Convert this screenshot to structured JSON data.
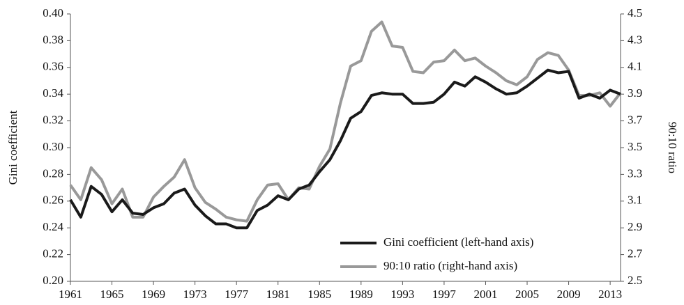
{
  "chart_data": {
    "type": "line",
    "y_label": "Gini coefficient",
    "y2_label": "90:10 ratio",
    "x": [
      1961,
      1962,
      1963,
      1964,
      1965,
      1966,
      1967,
      1968,
      1969,
      1970,
      1971,
      1972,
      1973,
      1974,
      1975,
      1976,
      1977,
      1978,
      1979,
      1980,
      1981,
      1982,
      1983,
      1984,
      1985,
      1986,
      1987,
      1988,
      1989,
      1990,
      1991,
      1992,
      1993,
      1994,
      1995,
      1996,
      1997,
      1998,
      1999,
      2000,
      2001,
      2002,
      2003,
      2004,
      2005,
      2006,
      2007,
      2008,
      2009,
      2010,
      2011,
      2012,
      2013,
      2014
    ],
    "xlim": [
      1961,
      2014
    ],
    "xticks": [
      1961,
      1965,
      1969,
      1973,
      1977,
      1981,
      1985,
      1989,
      1993,
      1997,
      2001,
      2005,
      2009,
      2013
    ],
    "ylim": [
      0.2,
      0.4
    ],
    "yticks": [
      {
        "value": 0.2,
        "label": "0.20"
      },
      0.22,
      0.24,
      0.26,
      0.28,
      {
        "value": 0.3,
        "label": "0.30"
      },
      0.32,
      0.34,
      0.36,
      0.38,
      {
        "value": 0.4,
        "label": "0.40"
      }
    ],
    "y2lim": [
      2.5,
      4.5
    ],
    "y2ticks": [
      2.5,
      2.7,
      2.9,
      3.1,
      3.3,
      3.5,
      3.7,
      3.9,
      4.1,
      4.3,
      4.5
    ],
    "legend": "lower right",
    "series": [
      {
        "name": "Gini coefficient (left-hand axis)",
        "color": "#1a1a1a",
        "axis": "y",
        "values": [
          0.261,
          0.248,
          0.271,
          0.265,
          0.252,
          0.261,
          0.251,
          0.25,
          0.255,
          0.258,
          0.266,
          0.269,
          0.257,
          0.249,
          0.243,
          0.243,
          0.24,
          0.24,
          0.253,
          0.257,
          0.264,
          0.261,
          0.269,
          0.272,
          0.282,
          0.291,
          0.305,
          0.322,
          0.327,
          0.339,
          0.341,
          0.34,
          0.34,
          0.333,
          0.333,
          0.334,
          0.34,
          0.349,
          0.346,
          0.353,
          0.349,
          0.344,
          0.34,
          0.341,
          0.346,
          0.352,
          0.358,
          0.356,
          0.357,
          0.337,
          0.34,
          0.337,
          0.343,
          0.34
        ]
      },
      {
        "name": "90:10 ratio (right-hand axis)",
        "color": "#999999",
        "axis": "y2",
        "values": [
          3.22,
          3.11,
          3.35,
          3.26,
          3.08,
          3.19,
          2.98,
          2.98,
          3.13,
          3.21,
          3.28,
          3.41,
          3.2,
          3.09,
          3.04,
          2.98,
          2.96,
          2.95,
          3.11,
          3.22,
          3.23,
          3.11,
          3.2,
          3.19,
          3.36,
          3.49,
          3.83,
          4.11,
          4.15,
          4.37,
          4.44,
          4.26,
          4.25,
          4.07,
          4.06,
          4.14,
          4.15,
          4.23,
          4.15,
          4.17,
          4.11,
          4.06,
          4.0,
          3.97,
          4.03,
          4.16,
          4.21,
          4.19,
          4.08,
          3.89,
          3.89,
          3.91,
          3.81,
          3.91
        ]
      }
    ]
  }
}
